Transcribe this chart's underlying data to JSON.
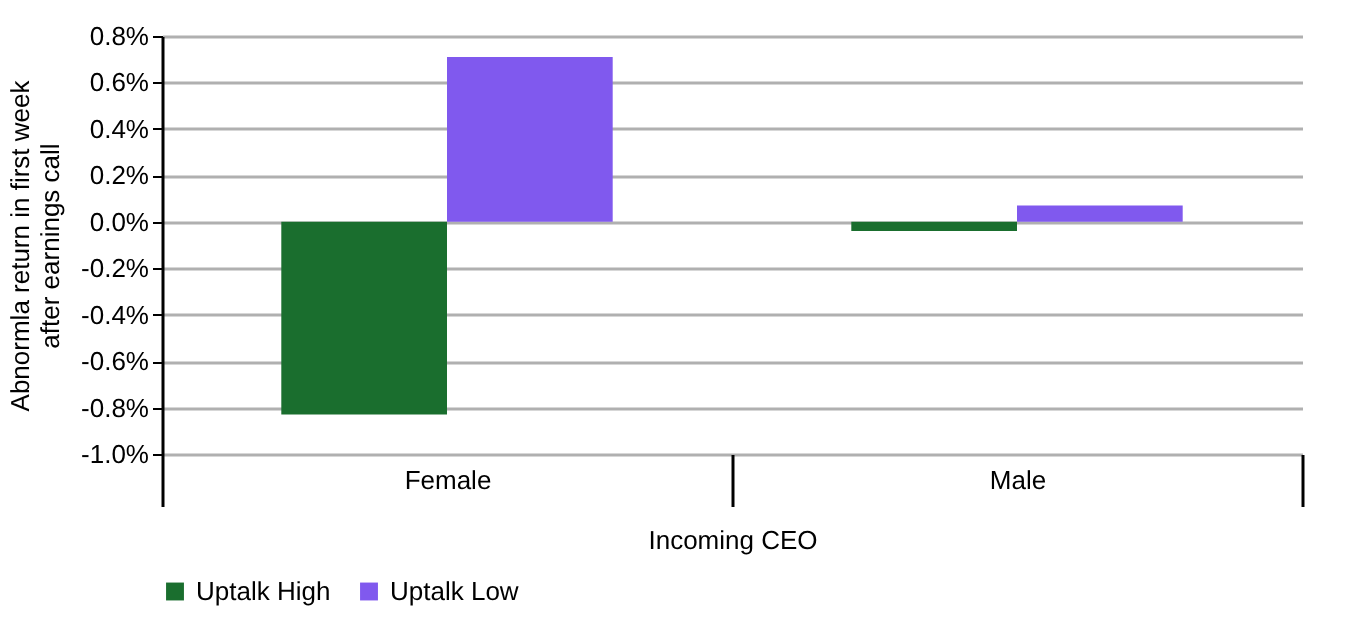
{
  "chart_data": {
    "type": "bar",
    "xlabel": "Incoming CEO",
    "ylabel": "Abnormla return in first week after earnings call",
    "categories": [
      "Female",
      "Male"
    ],
    "series": [
      {
        "name": "Uptalk High",
        "color": "#1a6e2e",
        "values": [
          -0.83,
          -0.04
        ]
      },
      {
        "name": "Uptalk Low",
        "color": "#8059ee",
        "values": [
          0.71,
          0.07
        ]
      }
    ],
    "ylim": [
      -1.0,
      0.8
    ],
    "yticks": [
      {
        "value": -1.0,
        "label": "-1.0%"
      },
      {
        "value": -0.8,
        "label": "-0.8%"
      },
      {
        "value": -0.6,
        "label": "-0.6%"
      },
      {
        "value": -0.4,
        "label": "-0.4%"
      },
      {
        "value": -0.2,
        "label": "-0.2%"
      },
      {
        "value": 0.0,
        "label": "0.0%"
      },
      {
        "value": 0.2,
        "label": "0.2%"
      },
      {
        "value": 0.4,
        "label": "0.4%"
      },
      {
        "value": 0.6,
        "label": "0.6%"
      },
      {
        "value": 0.8,
        "label": "0.8%"
      }
    ],
    "grid": "y",
    "legend": "bottom"
  }
}
